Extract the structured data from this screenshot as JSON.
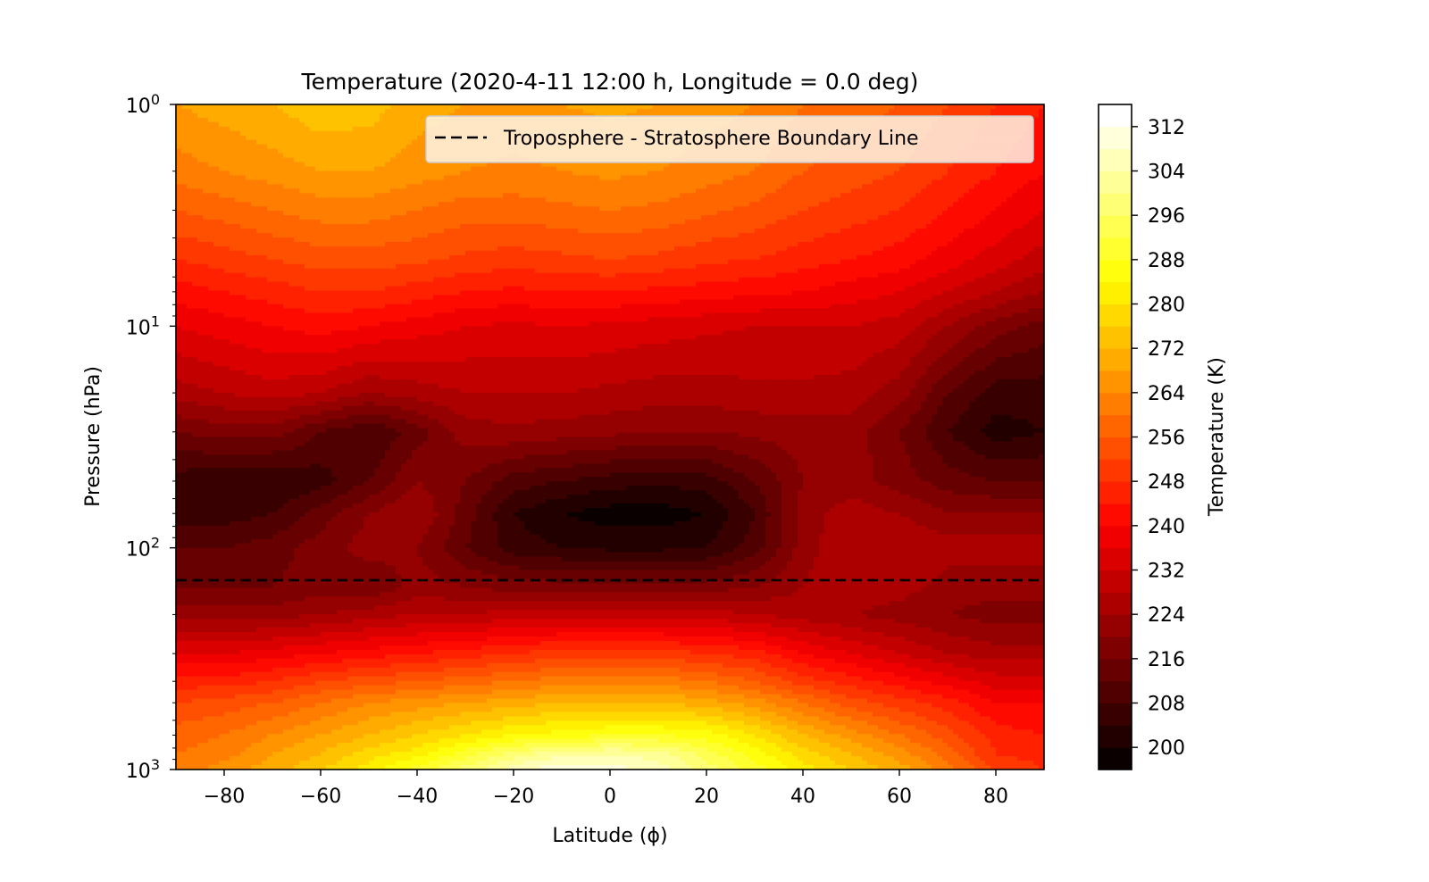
{
  "chart_data": {
    "type": "heatmap",
    "subtype": "filled-contour",
    "title": "Temperature (2020-4-11 12:00 h, Longitude = 0.0 deg)",
    "xlabel": "Latitude (ϕ)",
    "ylabel": "Pressure (hPa)",
    "xlim": [
      -90,
      90
    ],
    "ylim": [
      1000,
      1
    ],
    "y_scale": "log",
    "y_inverted": true,
    "x_ticks": [
      -80,
      -60,
      -40,
      -20,
      0,
      20,
      40,
      60,
      80
    ],
    "x_tick_labels": [
      "−80",
      "−60",
      "−40",
      "−20",
      "0",
      "20",
      "40",
      "60",
      "80"
    ],
    "y_ticks": [
      1,
      10,
      100,
      1000
    ],
    "y_tick_base": "10",
    "y_tick_exponents": [
      "0",
      "1",
      "2",
      "3"
    ],
    "colormap": "hot",
    "colorbar": {
      "label": "Temperature (K)",
      "levels_min": 196,
      "levels_max": 316,
      "level_step": 4,
      "ticks": [
        200,
        208,
        216,
        224,
        232,
        240,
        248,
        256,
        264,
        272,
        280,
        288,
        296,
        304,
        312
      ],
      "tick_labels": [
        "200",
        "208",
        "216",
        "224",
        "232",
        "240",
        "248",
        "256",
        "264",
        "272",
        "280",
        "288",
        "296",
        "304",
        "312"
      ]
    },
    "grid": false,
    "legend": {
      "placement": "top-right",
      "entries": [
        {
          "label": "Troposphere - Stratosphere Boundary Line",
          "style": "dashed",
          "color": "#000000"
        }
      ]
    },
    "boundary_line": {
      "pressure": 140
    },
    "grid_data": {
      "latitudes": [
        -90,
        -80,
        -70,
        -60,
        -50,
        -40,
        -30,
        -20,
        -10,
        0,
        10,
        20,
        30,
        40,
        50,
        60,
        70,
        80,
        90
      ],
      "pressures": [
        1,
        2,
        3,
        5,
        7,
        10,
        20,
        30,
        50,
        70,
        100,
        150,
        200,
        300,
        400,
        500,
        700,
        850,
        1000
      ],
      "temperature": [
        [
          268,
          270,
          272,
          275,
          274,
          270,
          268,
          267,
          268,
          269,
          268,
          266,
          264,
          260,
          258,
          256,
          252,
          248,
          244
        ],
        [
          262,
          264,
          266,
          268,
          268,
          266,
          264,
          263,
          264,
          265,
          264,
          262,
          260,
          256,
          254,
          252,
          248,
          244,
          240
        ],
        [
          256,
          258,
          260,
          262,
          262,
          260,
          258,
          258,
          259,
          260,
          259,
          257,
          255,
          252,
          250,
          248,
          244,
          240,
          236
        ],
        [
          248,
          250,
          252,
          254,
          254,
          253,
          251,
          250,
          251,
          252,
          251,
          249,
          248,
          246,
          244,
          242,
          238,
          234,
          230
        ],
        [
          242,
          244,
          246,
          248,
          248,
          246,
          244,
          243,
          244,
          244,
          243,
          242,
          241,
          240,
          238,
          236,
          232,
          228,
          224
        ],
        [
          236,
          238,
          240,
          242,
          240,
          238,
          236,
          235,
          236,
          235,
          234,
          233,
          232,
          232,
          232,
          230,
          224,
          218,
          214
        ],
        [
          226,
          228,
          230,
          228,
          224,
          226,
          228,
          228,
          228,
          227,
          226,
          226,
          227,
          227,
          226,
          222,
          212,
          206,
          206
        ],
        [
          216,
          218,
          218,
          212,
          208,
          214,
          222,
          223,
          222,
          221,
          220,
          220,
          221,
          222,
          222,
          216,
          208,
          202,
          204
        ],
        [
          206,
          204,
          204,
          206,
          212,
          220,
          216,
          210,
          208,
          206,
          205,
          206,
          212,
          220,
          222,
          218,
          214,
          212,
          212
        ],
        [
          206,
          206,
          208,
          214,
          220,
          224,
          214,
          204,
          200,
          198,
          198,
          200,
          208,
          222,
          226,
          224,
          220,
          220,
          220
        ],
        [
          212,
          212,
          214,
          218,
          222,
          220,
          212,
          206,
          204,
          203,
          203,
          204,
          210,
          222,
          228,
          228,
          226,
          226,
          226
        ],
        [
          216,
          216,
          216,
          218,
          216,
          222,
          220,
          218,
          218,
          218,
          218,
          218,
          220,
          224,
          228,
          226,
          222,
          222,
          222
        ],
        [
          222,
          222,
          222,
          224,
          226,
          228,
          228,
          230,
          230,
          230,
          230,
          230,
          228,
          226,
          224,
          222,
          220,
          218,
          218
        ],
        [
          236,
          236,
          238,
          240,
          242,
          244,
          246,
          248,
          250,
          250,
          250,
          248,
          246,
          240,
          236,
          232,
          228,
          226,
          226
        ],
        [
          246,
          246,
          248,
          252,
          254,
          256,
          258,
          260,
          262,
          262,
          262,
          260,
          256,
          250,
          246,
          242,
          238,
          234,
          234
        ],
        [
          252,
          254,
          256,
          260,
          264,
          266,
          268,
          270,
          272,
          272,
          272,
          270,
          266,
          260,
          254,
          250,
          246,
          240,
          240
        ],
        [
          258,
          260,
          264,
          268,
          272,
          276,
          280,
          284,
          286,
          288,
          288,
          286,
          280,
          272,
          266,
          260,
          254,
          246,
          244
        ],
        [
          260,
          262,
          268,
          272,
          278,
          282,
          290,
          298,
          302,
          304,
          302,
          294,
          286,
          278,
          272,
          266,
          258,
          248,
          246
        ],
        [
          262,
          266,
          270,
          276,
          282,
          290,
          298,
          306,
          312,
          310,
          306,
          298,
          290,
          282,
          276,
          270,
          262,
          252,
          248
        ]
      ]
    }
  }
}
